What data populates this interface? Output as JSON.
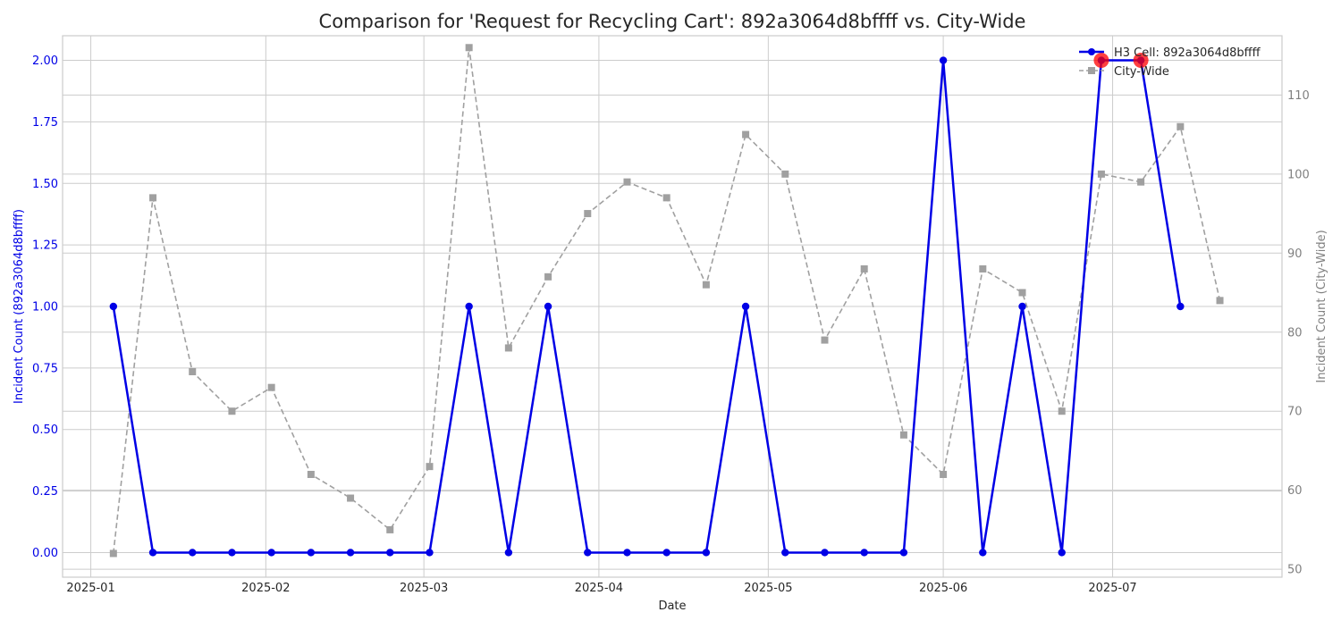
{
  "chart_data": {
    "type": "line",
    "title": "Comparison for 'Request for Recycling Cart': 892a3064d8bffff vs. City-Wide",
    "xlabel": "Date",
    "ylabel_left": "Incident Count (892a3064d8bffff)",
    "ylabel_right": "Incident Count (City-Wide)",
    "x_ticks": [
      "2025-01",
      "2025-02",
      "2025-03",
      "2025-04",
      "2025-05",
      "2025-06",
      "2025-07"
    ],
    "x_tick_dates": [
      "2025-01-01",
      "2025-02-01",
      "2025-03-01",
      "2025-04-01",
      "2025-05-01",
      "2025-06-01",
      "2025-07-01"
    ],
    "xlim": [
      "2024-12-27",
      "2025-07-31"
    ],
    "y_left_ticks": [
      "0.00",
      "0.25",
      "0.50",
      "0.75",
      "1.00",
      "1.25",
      "1.50",
      "1.75",
      "2.00"
    ],
    "ylim_left": [
      -0.1,
      2.1
    ],
    "y_right_ticks": [
      "50",
      "60",
      "70",
      "80",
      "90",
      "100",
      "110"
    ],
    "ylim_right": [
      49,
      117.5
    ],
    "grid": true,
    "legend_position": "top-right",
    "colors": {
      "cell": "#0000e6",
      "city": "#a0a0a0",
      "highlight": "#ff0000",
      "axis_left": "#0000e6",
      "axis_right": "#808080",
      "grid": "#cccccc",
      "text": "#262626"
    },
    "series": [
      {
        "name": "H3 Cell: 892a3064d8bffff",
        "axis": "left",
        "marker": "circle",
        "style": "solid",
        "x": [
          "2025-01-05",
          "2025-01-12",
          "2025-01-19",
          "2025-01-26",
          "2025-02-02",
          "2025-02-09",
          "2025-02-16",
          "2025-02-23",
          "2025-03-02",
          "2025-03-09",
          "2025-03-16",
          "2025-03-23",
          "2025-03-30",
          "2025-04-06",
          "2025-04-13",
          "2025-04-20",
          "2025-04-27",
          "2025-05-04",
          "2025-05-11",
          "2025-05-18",
          "2025-05-25",
          "2025-06-01",
          "2025-06-08",
          "2025-06-15",
          "2025-06-22",
          "2025-06-29",
          "2025-07-06",
          "2025-07-13"
        ],
        "values": [
          1,
          0,
          0,
          0,
          0,
          0,
          0,
          0,
          0,
          1,
          0,
          1,
          0,
          0,
          0,
          0,
          1,
          0,
          0,
          0,
          0,
          2,
          0,
          1,
          0,
          2,
          2,
          1
        ]
      },
      {
        "name": "City-Wide",
        "axis": "right",
        "marker": "square",
        "style": "dashed",
        "x": [
          "2025-01-05",
          "2025-01-12",
          "2025-01-19",
          "2025-01-26",
          "2025-02-02",
          "2025-02-09",
          "2025-02-16",
          "2025-02-23",
          "2025-03-02",
          "2025-03-09",
          "2025-03-16",
          "2025-03-23",
          "2025-03-30",
          "2025-04-06",
          "2025-04-13",
          "2025-04-20",
          "2025-04-27",
          "2025-05-04",
          "2025-05-11",
          "2025-05-18",
          "2025-05-25",
          "2025-06-01",
          "2025-06-08",
          "2025-06-15",
          "2025-06-22",
          "2025-06-29",
          "2025-07-06",
          "2025-07-13",
          "2025-07-20"
        ],
        "values": [
          52,
          97,
          75,
          70,
          73,
          62,
          59,
          55,
          63,
          116,
          78,
          87,
          95,
          99,
          97,
          86,
          105,
          100,
          79,
          88,
          67,
          62,
          88,
          85,
          70,
          100,
          99,
          106,
          84
        ]
      }
    ],
    "highlighted_points": {
      "series": "H3 Cell: 892a3064d8bffff",
      "x": [
        "2025-06-29",
        "2025-07-06"
      ]
    }
  }
}
